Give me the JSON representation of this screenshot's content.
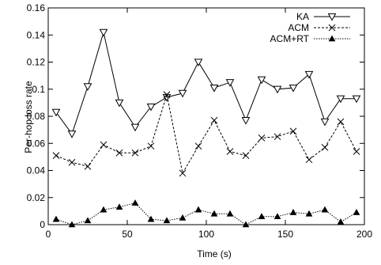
{
  "chart_data": {
    "type": "line",
    "title": "",
    "xlabel": "Time (s)",
    "ylabel": "Per-hop loss rate",
    "xlim": [
      0,
      200
    ],
    "ylim": [
      0,
      0.16
    ],
    "xticks": [
      0,
      50,
      100,
      150,
      200
    ],
    "yticks": [
      0,
      0.02,
      0.04,
      0.06,
      0.08,
      0.1,
      0.12,
      0.14,
      0.16
    ],
    "xtick_labels": [
      "0",
      "50",
      "100",
      "150",
      "200"
    ],
    "ytick_labels": [
      "0",
      "0.02",
      "0.04",
      "0.06",
      "0.08",
      "0.1",
      "0.12",
      "0.14",
      "0.16"
    ],
    "grid": false,
    "legend_position": "top-right",
    "x": [
      5,
      15,
      25,
      35,
      45,
      55,
      65,
      75,
      85,
      95,
      105,
      115,
      125,
      135,
      145,
      155,
      165,
      175,
      185,
      195
    ],
    "series": [
      {
        "name": "KA",
        "marker": "triangle-down-open",
        "line_style": "solid",
        "values": [
          0.083,
          0.067,
          0.102,
          0.142,
          0.09,
          0.072,
          0.087,
          0.094,
          0.097,
          0.12,
          0.101,
          0.105,
          0.077,
          0.107,
          0.1,
          0.101,
          0.111,
          0.076,
          0.093,
          0.093
        ]
      },
      {
        "name": "ACM",
        "marker": "x",
        "line_style": "dashed",
        "values": [
          0.051,
          0.046,
          0.043,
          0.059,
          0.053,
          0.053,
          0.058,
          0.096,
          0.038,
          0.058,
          0.077,
          0.054,
          0.051,
          0.064,
          0.065,
          0.069,
          0.048,
          0.057,
          0.076,
          0.054
        ]
      },
      {
        "name": "ACM+RT",
        "marker": "triangle-up-filled",
        "line_style": "dotted",
        "values": [
          0.004,
          0.0,
          0.003,
          0.011,
          0.013,
          0.016,
          0.004,
          0.003,
          0.005,
          0.011,
          0.008,
          0.008,
          0.0,
          0.006,
          0.006,
          0.009,
          0.008,
          0.011,
          0.002,
          0.009
        ]
      }
    ]
  }
}
